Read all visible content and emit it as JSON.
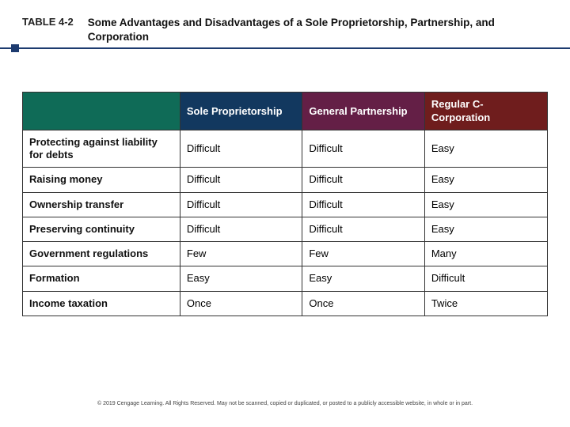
{
  "header": {
    "label": "TABLE 4-2",
    "title": "Some Advantages and Disadvantages of a Sole Proprietorship, Partnership, and Corporation"
  },
  "colors": {
    "underline": "#1d3b6f",
    "blank_header_bg": "#0f6b57",
    "col_sole_bg": "#12385f",
    "col_partnership_bg": "#641f46",
    "col_corp_bg": "#6f1d1d",
    "border": "#333333",
    "header_text": "#ffffff"
  },
  "table": {
    "columns": [
      "Sole Proprietorship",
      "General Partnership",
      "Regular C-Corporation"
    ],
    "rows": [
      {
        "label": "Protecting against liability for debts",
        "cells": [
          "Difficult",
          "Difficult",
          "Easy"
        ]
      },
      {
        "label": "Raising money",
        "cells": [
          "Difficult",
          "Difficult",
          "Easy"
        ]
      },
      {
        "label": "Ownership transfer",
        "cells": [
          "Difficult",
          "Difficult",
          "Easy"
        ]
      },
      {
        "label": "Preserving continuity",
        "cells": [
          "Difficult",
          "Difficult",
          "Easy"
        ]
      },
      {
        "label": "Government regulations",
        "cells": [
          "Few",
          "Few",
          "Many"
        ]
      },
      {
        "label": "Formation",
        "cells": [
          "Easy",
          "Easy",
          "Difficult"
        ]
      },
      {
        "label": "Income taxation",
        "cells": [
          "Once",
          "Once",
          "Twice"
        ]
      }
    ]
  },
  "footer": "© 2019 Cengage Learning. All Rights Reserved. May not be scanned, copied or duplicated, or posted to a publicly accessible website, in whole or in part."
}
